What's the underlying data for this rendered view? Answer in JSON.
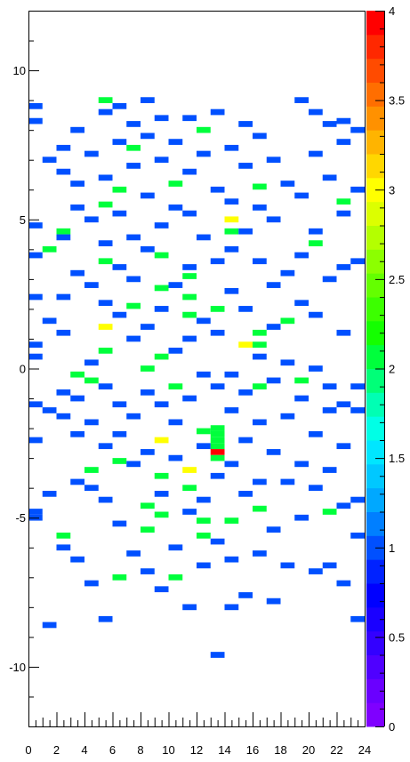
{
  "chart_data": {
    "type": "heatmap",
    "title": "",
    "xlabel": "",
    "ylabel": "",
    "xlim": [
      0,
      24
    ],
    "ylim": [
      -12,
      12
    ],
    "x_bin_width": 1,
    "y_bin_width": 0.2,
    "x_ticks": [
      0,
      2,
      4,
      6,
      8,
      10,
      12,
      14,
      16,
      18,
      20,
      22,
      24
    ],
    "x_tick_labels": [
      "0",
      "2",
      "4",
      "6",
      "8",
      "10",
      "12",
      "14",
      "16",
      "18",
      "20",
      "22",
      "24"
    ],
    "y_ticks": [
      -10,
      -5,
      0,
      5,
      10
    ],
    "y_tick_labels": [
      "-10",
      "-5",
      "0",
      "5",
      "10"
    ],
    "z_range": [
      0,
      4
    ],
    "z_ticks": [
      0,
      0.5,
      1,
      1.5,
      2,
      2.5,
      3,
      3.5,
      4
    ],
    "z_tick_labels": [
      "0",
      "0.5",
      "1",
      "1.5",
      "2",
      "2.5",
      "3",
      "3.5",
      "4"
    ],
    "palette": [
      "#7f00ff",
      "#6a00ff",
      "#4f00ff",
      "#3300ff",
      "#1a00ff",
      "#0000ff",
      "#0022ff",
      "#0050ff",
      "#007fff",
      "#00a8ff",
      "#00c8ff",
      "#00e6ff",
      "#00ffe6",
      "#00ffb4",
      "#00ff78",
      "#00ff3c",
      "#14ff00",
      "#3cff00",
      "#64ff00",
      "#8cff00",
      "#b4ff00",
      "#dcff00",
      "#ffff00",
      "#ffd700",
      "#ffb400",
      "#ff9100",
      "#ff6e00",
      "#ff4b00",
      "#ff2800",
      "#ff0000"
    ],
    "empty_color": "#ffffff",
    "bins": [
      {
        "x": 13,
        "y": -2.9,
        "z": 4
      },
      {
        "x": 13,
        "y": -2.7,
        "z": 2
      },
      {
        "x": 13,
        "y": -2.5,
        "z": 2
      },
      {
        "x": 13,
        "y": -2.3,
        "z": 2
      },
      {
        "x": 13,
        "y": -2.1,
        "z": 2
      },
      {
        "x": 9,
        "y": -2.5,
        "z": 3
      },
      {
        "x": 11,
        "y": -3.5,
        "z": 3
      },
      {
        "x": 14,
        "y": 4.9,
        "z": 3
      },
      {
        "x": 5,
        "y": 1.3,
        "z": 3
      },
      {
        "x": 15,
        "y": 0.7,
        "z": 3
      },
      {
        "x": 5,
        "y": 8.9,
        "z": 2
      },
      {
        "x": 12,
        "y": 7.9,
        "z": 2
      },
      {
        "x": 7,
        "y": 7.3,
        "z": 2
      },
      {
        "x": 10,
        "y": 6.1,
        "z": 2
      },
      {
        "x": 16,
        "y": 6.0,
        "z": 2
      },
      {
        "x": 6,
        "y": 5.9,
        "z": 2
      },
      {
        "x": 22,
        "y": 5.5,
        "z": 2
      },
      {
        "x": 5,
        "y": 5.4,
        "z": 2
      },
      {
        "x": 2,
        "y": 4.5,
        "z": 2
      },
      {
        "x": 14,
        "y": 4.5,
        "z": 2
      },
      {
        "x": 20,
        "y": 4.1,
        "z": 2
      },
      {
        "x": 1,
        "y": 3.9,
        "z": 2
      },
      {
        "x": 9,
        "y": 3.7,
        "z": 2
      },
      {
        "x": 5,
        "y": 3.5,
        "z": 2
      },
      {
        "x": 11,
        "y": 3.0,
        "z": 2
      },
      {
        "x": 9,
        "y": 2.6,
        "z": 2
      },
      {
        "x": 7,
        "y": 2.0,
        "z": 2
      },
      {
        "x": 11,
        "y": 2.3,
        "z": 2
      },
      {
        "x": 13,
        "y": 1.9,
        "z": 2
      },
      {
        "x": 11,
        "y": 1.7,
        "z": 2
      },
      {
        "x": 16,
        "y": 1.1,
        "z": 2
      },
      {
        "x": 18,
        "y": 1.5,
        "z": 2
      },
      {
        "x": 16,
        "y": 0.7,
        "z": 2
      },
      {
        "x": 5,
        "y": 0.5,
        "z": 2
      },
      {
        "x": 9,
        "y": 0.3,
        "z": 2
      },
      {
        "x": 8,
        "y": -0.1,
        "z": 2
      },
      {
        "x": 3,
        "y": -0.3,
        "z": 2
      },
      {
        "x": 4,
        "y": -0.5,
        "z": 2
      },
      {
        "x": 10,
        "y": -0.7,
        "z": 2
      },
      {
        "x": 16,
        "y": -0.7,
        "z": 2
      },
      {
        "x": 19,
        "y": -0.5,
        "z": 2
      },
      {
        "x": 12,
        "y": -2.2,
        "z": 2
      },
      {
        "x": 6,
        "y": -3.2,
        "z": 2
      },
      {
        "x": 9,
        "y": -3.7,
        "z": 2
      },
      {
        "x": 4,
        "y": -3.5,
        "z": 2
      },
      {
        "x": 11,
        "y": -4.1,
        "z": 2
      },
      {
        "x": 13,
        "y": -3.1,
        "z": 2
      },
      {
        "x": 8,
        "y": -4.7,
        "z": 2
      },
      {
        "x": 16,
        "y": -4.8,
        "z": 2
      },
      {
        "x": 9,
        "y": -5.0,
        "z": 2
      },
      {
        "x": 12,
        "y": -5.2,
        "z": 2
      },
      {
        "x": 14,
        "y": -5.2,
        "z": 2
      },
      {
        "x": 21,
        "y": -4.9,
        "z": 2
      },
      {
        "x": 8,
        "y": -5.5,
        "z": 2
      },
      {
        "x": 2,
        "y": -5.7,
        "z": 2
      },
      {
        "x": 12,
        "y": -5.7,
        "z": 2
      },
      {
        "x": 6,
        "y": -7.1,
        "z": 2
      },
      {
        "x": 10,
        "y": -7.1,
        "z": 2
      },
      {
        "x": 0,
        "y": 8.7,
        "z": 1
      },
      {
        "x": 0,
        "y": 8.2,
        "z": 1
      },
      {
        "x": 0,
        "y": 4.7,
        "z": 1
      },
      {
        "x": 0,
        "y": 3.7,
        "z": 1
      },
      {
        "x": 0,
        "y": 2.3,
        "z": 1
      },
      {
        "x": 0,
        "y": 0.7,
        "z": 1
      },
      {
        "x": 0,
        "y": 0.3,
        "z": 1
      },
      {
        "x": 0,
        "y": -1.3,
        "z": 1
      },
      {
        "x": 0,
        "y": -2.5,
        "z": 1
      },
      {
        "x": 0,
        "y": -4.9,
        "z": 1
      },
      {
        "x": 0,
        "y": -5.1,
        "z": 1
      },
      {
        "x": 1,
        "y": 6.9,
        "z": 1
      },
      {
        "x": 1,
        "y": 1.5,
        "z": 1
      },
      {
        "x": 1,
        "y": -1.5,
        "z": 1
      },
      {
        "x": 1,
        "y": -4.3,
        "z": 1
      },
      {
        "x": 1,
        "y": -8.7,
        "z": 1
      },
      {
        "x": 2,
        "y": 7.3,
        "z": 1
      },
      {
        "x": 2,
        "y": 6.5,
        "z": 1
      },
      {
        "x": 2,
        "y": 4.3,
        "z": 1
      },
      {
        "x": 2,
        "y": 2.3,
        "z": 1
      },
      {
        "x": 2,
        "y": 1.1,
        "z": 1
      },
      {
        "x": 2,
        "y": -0.9,
        "z": 1
      },
      {
        "x": 2,
        "y": -1.7,
        "z": 1
      },
      {
        "x": 2,
        "y": -6.1,
        "z": 1
      },
      {
        "x": 3,
        "y": 7.9,
        "z": 1
      },
      {
        "x": 3,
        "y": 6.1,
        "z": 1
      },
      {
        "x": 3,
        "y": 5.3,
        "z": 1
      },
      {
        "x": 3,
        "y": 3.1,
        "z": 1
      },
      {
        "x": 3,
        "y": -1.1,
        "z": 1
      },
      {
        "x": 3,
        "y": -2.3,
        "z": 1
      },
      {
        "x": 3,
        "y": -3.9,
        "z": 1
      },
      {
        "x": 3,
        "y": -6.5,
        "z": 1
      },
      {
        "x": 4,
        "y": 7.1,
        "z": 1
      },
      {
        "x": 4,
        "y": 4.9,
        "z": 1
      },
      {
        "x": 4,
        "y": 2.7,
        "z": 1
      },
      {
        "x": 4,
        "y": 0.1,
        "z": 1
      },
      {
        "x": 4,
        "y": -1.9,
        "z": 1
      },
      {
        "x": 4,
        "y": -4.1,
        "z": 1
      },
      {
        "x": 4,
        "y": -7.3,
        "z": 1
      },
      {
        "x": 5,
        "y": 8.5,
        "z": 1
      },
      {
        "x": 5,
        "y": 6.3,
        "z": 1
      },
      {
        "x": 5,
        "y": 4.1,
        "z": 1
      },
      {
        "x": 5,
        "y": 2.1,
        "z": 1
      },
      {
        "x": 5,
        "y": -0.7,
        "z": 1
      },
      {
        "x": 5,
        "y": -2.7,
        "z": 1
      },
      {
        "x": 5,
        "y": -4.5,
        "z": 1
      },
      {
        "x": 5,
        "y": -8.5,
        "z": 1
      },
      {
        "x": 6,
        "y": 8.7,
        "z": 1
      },
      {
        "x": 6,
        "y": 7.5,
        "z": 1
      },
      {
        "x": 6,
        "y": 5.1,
        "z": 1
      },
      {
        "x": 6,
        "y": 3.3,
        "z": 1
      },
      {
        "x": 6,
        "y": 1.7,
        "z": 1
      },
      {
        "x": 6,
        "y": -1.3,
        "z": 1
      },
      {
        "x": 6,
        "y": -2.3,
        "z": 1
      },
      {
        "x": 6,
        "y": -5.3,
        "z": 1
      },
      {
        "x": 7,
        "y": 8.1,
        "z": 1
      },
      {
        "x": 7,
        "y": 6.7,
        "z": 1
      },
      {
        "x": 7,
        "y": 4.3,
        "z": 1
      },
      {
        "x": 7,
        "y": 2.9,
        "z": 1
      },
      {
        "x": 7,
        "y": 0.9,
        "z": 1
      },
      {
        "x": 7,
        "y": -1.7,
        "z": 1
      },
      {
        "x": 7,
        "y": -3.3,
        "z": 1
      },
      {
        "x": 7,
        "y": -6.3,
        "z": 1
      },
      {
        "x": 8,
        "y": 8.9,
        "z": 1
      },
      {
        "x": 8,
        "y": 7.7,
        "z": 1
      },
      {
        "x": 8,
        "y": 5.7,
        "z": 1
      },
      {
        "x": 8,
        "y": 3.9,
        "z": 1
      },
      {
        "x": 8,
        "y": 1.3,
        "z": 1
      },
      {
        "x": 8,
        "y": -0.9,
        "z": 1
      },
      {
        "x": 8,
        "y": -2.9,
        "z": 1
      },
      {
        "x": 8,
        "y": -6.9,
        "z": 1
      },
      {
        "x": 9,
        "y": 8.3,
        "z": 1
      },
      {
        "x": 9,
        "y": 6.9,
        "z": 1
      },
      {
        "x": 9,
        "y": 4.7,
        "z": 1
      },
      {
        "x": 9,
        "y": 1.9,
        "z": 1
      },
      {
        "x": 9,
        "y": -1.3,
        "z": 1
      },
      {
        "x": 9,
        "y": -4.3,
        "z": 1
      },
      {
        "x": 9,
        "y": -7.5,
        "z": 1
      },
      {
        "x": 10,
        "y": 7.5,
        "z": 1
      },
      {
        "x": 10,
        "y": 5.3,
        "z": 1
      },
      {
        "x": 10,
        "y": 2.7,
        "z": 1
      },
      {
        "x": 10,
        "y": 0.5,
        "z": 1
      },
      {
        "x": 10,
        "y": -1.9,
        "z": 1
      },
      {
        "x": 10,
        "y": -3.1,
        "z": 1
      },
      {
        "x": 10,
        "y": -6.1,
        "z": 1
      },
      {
        "x": 11,
        "y": 8.3,
        "z": 1
      },
      {
        "x": 11,
        "y": 6.5,
        "z": 1
      },
      {
        "x": 11,
        "y": 5.1,
        "z": 1
      },
      {
        "x": 11,
        "y": 3.3,
        "z": 1
      },
      {
        "x": 11,
        "y": 0.9,
        "z": 1
      },
      {
        "x": 11,
        "y": -1.1,
        "z": 1
      },
      {
        "x": 11,
        "y": -4.9,
        "z": 1
      },
      {
        "x": 11,
        "y": -8.1,
        "z": 1
      },
      {
        "x": 12,
        "y": 7.1,
        "z": 1
      },
      {
        "x": 12,
        "y": 4.3,
        "z": 1
      },
      {
        "x": 12,
        "y": 1.5,
        "z": 1
      },
      {
        "x": 12,
        "y": -0.3,
        "z": 1
      },
      {
        "x": 12,
        "y": -2.7,
        "z": 1
      },
      {
        "x": 12,
        "y": -4.5,
        "z": 1
      },
      {
        "x": 12,
        "y": -6.7,
        "z": 1
      },
      {
        "x": 13,
        "y": 8.5,
        "z": 1
      },
      {
        "x": 13,
        "y": 5.9,
        "z": 1
      },
      {
        "x": 13,
        "y": 3.5,
        "z": 1
      },
      {
        "x": 13,
        "y": 1.1,
        "z": 1
      },
      {
        "x": 13,
        "y": -0.7,
        "z": 1
      },
      {
        "x": 13,
        "y": -3.7,
        "z": 1
      },
      {
        "x": 13,
        "y": -5.9,
        "z": 1
      },
      {
        "x": 13,
        "y": -9.7,
        "z": 1
      },
      {
        "x": 14,
        "y": 7.3,
        "z": 1
      },
      {
        "x": 14,
        "y": 5.5,
        "z": 1
      },
      {
        "x": 14,
        "y": 3.9,
        "z": 1
      },
      {
        "x": 14,
        "y": 2.5,
        "z": 1
      },
      {
        "x": 14,
        "y": -0.3,
        "z": 1
      },
      {
        "x": 14,
        "y": -1.5,
        "z": 1
      },
      {
        "x": 14,
        "y": -3.3,
        "z": 1
      },
      {
        "x": 14,
        "y": -6.5,
        "z": 1
      },
      {
        "x": 14,
        "y": -8.1,
        "z": 1
      },
      {
        "x": 15,
        "y": 8.1,
        "z": 1
      },
      {
        "x": 15,
        "y": 6.7,
        "z": 1
      },
      {
        "x": 15,
        "y": 4.5,
        "z": 1
      },
      {
        "x": 15,
        "y": 1.9,
        "z": 1
      },
      {
        "x": 15,
        "y": -0.9,
        "z": 1
      },
      {
        "x": 15,
        "y": -2.5,
        "z": 1
      },
      {
        "x": 15,
        "y": -4.3,
        "z": 1
      },
      {
        "x": 15,
        "y": -7.7,
        "z": 1
      },
      {
        "x": 16,
        "y": 7.7,
        "z": 1
      },
      {
        "x": 16,
        "y": 5.3,
        "z": 1
      },
      {
        "x": 16,
        "y": 3.5,
        "z": 1
      },
      {
        "x": 16,
        "y": 0.3,
        "z": 1
      },
      {
        "x": 16,
        "y": -1.9,
        "z": 1
      },
      {
        "x": 16,
        "y": -3.9,
        "z": 1
      },
      {
        "x": 16,
        "y": -6.3,
        "z": 1
      },
      {
        "x": 17,
        "y": 6.9,
        "z": 1
      },
      {
        "x": 17,
        "y": 4.9,
        "z": 1
      },
      {
        "x": 17,
        "y": 2.7,
        "z": 1
      },
      {
        "x": 17,
        "y": 1.3,
        "z": 1
      },
      {
        "x": 17,
        "y": -0.5,
        "z": 1
      },
      {
        "x": 17,
        "y": -2.9,
        "z": 1
      },
      {
        "x": 17,
        "y": -5.5,
        "z": 1
      },
      {
        "x": 17,
        "y": -7.9,
        "z": 1
      },
      {
        "x": 18,
        "y": 6.1,
        "z": 1
      },
      {
        "x": 18,
        "y": 3.1,
        "z": 1
      },
      {
        "x": 18,
        "y": 0.1,
        "z": 1
      },
      {
        "x": 18,
        "y": -1.7,
        "z": 1
      },
      {
        "x": 18,
        "y": -3.9,
        "z": 1
      },
      {
        "x": 18,
        "y": -6.7,
        "z": 1
      },
      {
        "x": 19,
        "y": 8.9,
        "z": 1
      },
      {
        "x": 19,
        "y": 5.7,
        "z": 1
      },
      {
        "x": 19,
        "y": 3.7,
        "z": 1
      },
      {
        "x": 19,
        "y": 2.1,
        "z": 1
      },
      {
        "x": 19,
        "y": -1.1,
        "z": 1
      },
      {
        "x": 19,
        "y": -3.3,
        "z": 1
      },
      {
        "x": 19,
        "y": -5.1,
        "z": 1
      },
      {
        "x": 20,
        "y": 8.5,
        "z": 1
      },
      {
        "x": 20,
        "y": 7.1,
        "z": 1
      },
      {
        "x": 20,
        "y": 4.5,
        "z": 1
      },
      {
        "x": 20,
        "y": 1.7,
        "z": 1
      },
      {
        "x": 20,
        "y": -0.1,
        "z": 1
      },
      {
        "x": 20,
        "y": -2.3,
        "z": 1
      },
      {
        "x": 20,
        "y": -4.1,
        "z": 1
      },
      {
        "x": 20,
        "y": -6.9,
        "z": 1
      },
      {
        "x": 21,
        "y": 8.1,
        "z": 1
      },
      {
        "x": 21,
        "y": 6.3,
        "z": 1
      },
      {
        "x": 21,
        "y": 2.9,
        "z": 1
      },
      {
        "x": 21,
        "y": -0.7,
        "z": 1
      },
      {
        "x": 21,
        "y": -1.5,
        "z": 1
      },
      {
        "x": 21,
        "y": -3.5,
        "z": 1
      },
      {
        "x": 21,
        "y": -6.7,
        "z": 1
      },
      {
        "x": 22,
        "y": 8.2,
        "z": 1
      },
      {
        "x": 22,
        "y": 7.5,
        "z": 1
      },
      {
        "x": 22,
        "y": 5.1,
        "z": 1
      },
      {
        "x": 22,
        "y": 3.3,
        "z": 1
      },
      {
        "x": 22,
        "y": 1.1,
        "z": 1
      },
      {
        "x": 22,
        "y": -1.3,
        "z": 1
      },
      {
        "x": 22,
        "y": -2.7,
        "z": 1
      },
      {
        "x": 22,
        "y": -4.7,
        "z": 1
      },
      {
        "x": 22,
        "y": -7.3,
        "z": 1
      },
      {
        "x": 23,
        "y": 7.9,
        "z": 1
      },
      {
        "x": 23,
        "y": 5.9,
        "z": 1
      },
      {
        "x": 23,
        "y": 3.5,
        "z": 1
      },
      {
        "x": 23,
        "y": -0.7,
        "z": 1
      },
      {
        "x": 23,
        "y": -1.5,
        "z": 1
      },
      {
        "x": 23,
        "y": -4.5,
        "z": 1
      },
      {
        "x": 23,
        "y": -5.7,
        "z": 1
      },
      {
        "x": 23,
        "y": -8.5,
        "z": 1
      }
    ]
  }
}
